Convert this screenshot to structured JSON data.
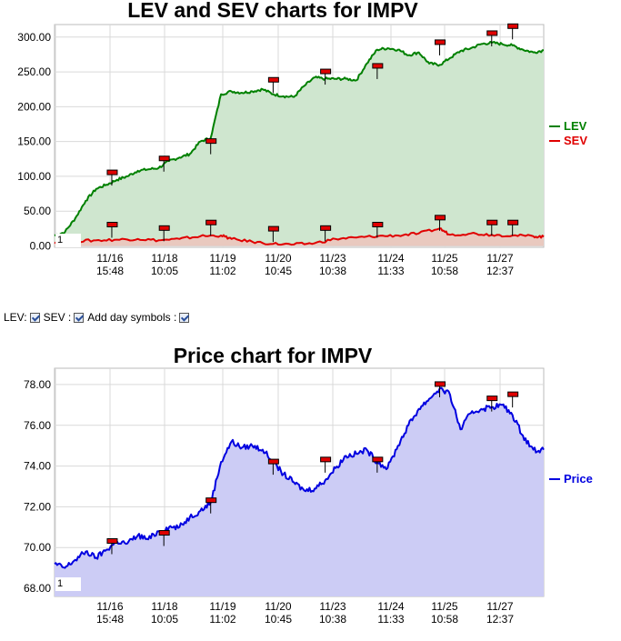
{
  "chart_data": [
    {
      "type": "area",
      "title": "LEV and SEV charts for IMPV",
      "x_ticks": [
        {
          "date": "11/16",
          "time": "15:48"
        },
        {
          "date": "11/18",
          "time": "10:05"
        },
        {
          "date": "11/19",
          "time": "11:02"
        },
        {
          "date": "11/20",
          "time": "10:45"
        },
        {
          "date": "11/23",
          "time": "10:38"
        },
        {
          "date": "11/24",
          "time": "11:33"
        },
        {
          "date": "11/25",
          "time": "10:58"
        },
        {
          "date": "11/27",
          "time": "12:37"
        }
      ],
      "y_ticks": [
        "0.00",
        "50.00",
        "100.00",
        "150.00",
        "200.00",
        "250.00",
        "300.00"
      ],
      "ylim": [
        -2,
        318
      ],
      "legend_position": "right",
      "grid": true,
      "series": [
        {
          "name": "LEV",
          "color": "#008000",
          "fill": "#cfe6cf",
          "points": [
            [
              0,
              15
            ],
            [
              2,
              20
            ],
            [
              4,
              40
            ],
            [
              6,
              65
            ],
            [
              8,
              82
            ],
            [
              10,
              88
            ],
            [
              12,
              95
            ],
            [
              14,
              100
            ],
            [
              16,
              108
            ],
            [
              18,
              110
            ],
            [
              20,
              112
            ],
            [
              22,
              122
            ],
            [
              24,
              127
            ],
            [
              26,
              132
            ],
            [
              28,
              150
            ],
            [
              30,
              155
            ],
            [
              32,
              218
            ],
            [
              34,
              222
            ],
            [
              36,
              220
            ],
            [
              38,
              222
            ],
            [
              40,
              225
            ],
            [
              42,
              218
            ],
            [
              44,
              215
            ],
            [
              46,
              214
            ],
            [
              48,
              230
            ],
            [
              50,
              242
            ],
            [
              52,
              240
            ],
            [
              54,
              240
            ],
            [
              56,
              240
            ],
            [
              58,
              238
            ],
            [
              60,
              262
            ],
            [
              62,
              282
            ],
            [
              64,
              284
            ],
            [
              66,
              282
            ],
            [
              68,
              274
            ],
            [
              70,
              278
            ],
            [
              72,
              262
            ],
            [
              74,
              260
            ],
            [
              76,
              270
            ],
            [
              78,
              280
            ],
            [
              80,
              284
            ],
            [
              82,
              290
            ],
            [
              84,
              292
            ],
            [
              86,
              290
            ],
            [
              88,
              288
            ],
            [
              90,
              282
            ],
            [
              92,
              278
            ],
            [
              94,
              281
            ]
          ]
        },
        {
          "name": "SEV",
          "color": "#e00000",
          "fill": "#e9c9bf",
          "points": [
            [
              0,
              5
            ],
            [
              4,
              7
            ],
            [
              8,
              8
            ],
            [
              12,
              9
            ],
            [
              16,
              10
            ],
            [
              20,
              8
            ],
            [
              24,
              10
            ],
            [
              28,
              14
            ],
            [
              32,
              15
            ],
            [
              34,
              10
            ],
            [
              38,
              6
            ],
            [
              42,
              3
            ],
            [
              46,
              2
            ],
            [
              50,
              4
            ],
            [
              54,
              10
            ],
            [
              58,
              12
            ],
            [
              62,
              14
            ],
            [
              66,
              15
            ],
            [
              70,
              18
            ],
            [
              74,
              25
            ],
            [
              76,
              16
            ],
            [
              80,
              18
            ],
            [
              84,
              16
            ],
            [
              88,
              15
            ],
            [
              92,
              14
            ],
            [
              94,
              13
            ]
          ]
        }
      ],
      "markers": {
        "LEV": [
          [
            11,
            105
          ],
          [
            21,
            125
          ],
          [
            30,
            150
          ],
          [
            42,
            238
          ],
          [
            52,
            250
          ],
          [
            62,
            258
          ],
          [
            74,
            292
          ],
          [
            84,
            305
          ],
          [
            88,
            315
          ]
        ],
        "SEV": [
          [
            11,
            30
          ],
          [
            21,
            25
          ],
          [
            30,
            33
          ],
          [
            42,
            24
          ],
          [
            52,
            25
          ],
          [
            62,
            30
          ],
          [
            74,
            40
          ],
          [
            84,
            33
          ],
          [
            88,
            33
          ]
        ]
      },
      "zoom_value": "1"
    },
    {
      "type": "area",
      "title": "Price chart for IMPV",
      "x_ticks": [
        {
          "date": "11/16",
          "time": "15:48"
        },
        {
          "date": "11/18",
          "time": "10:05"
        },
        {
          "date": "11/19",
          "time": "11:02"
        },
        {
          "date": "11/20",
          "time": "10:45"
        },
        {
          "date": "11/23",
          "time": "10:38"
        },
        {
          "date": "11/24",
          "time": "11:33"
        },
        {
          "date": "11/25",
          "time": "10:58"
        },
        {
          "date": "11/27",
          "time": "12:37"
        }
      ],
      "y_ticks": [
        "68.00",
        "70.00",
        "72.00",
        "74.00",
        "76.00",
        "78.00"
      ],
      "ylim": [
        67.6,
        78.8
      ],
      "legend_position": "right",
      "grid": true,
      "series": [
        {
          "name": "Price",
          "color": "#0000e0",
          "fill": "#ccccf5",
          "points": [
            [
              0,
              69.2
            ],
            [
              2,
              69.0
            ],
            [
              4,
              69.4
            ],
            [
              6,
              69.8
            ],
            [
              8,
              69.5
            ],
            [
              10,
              69.9
            ],
            [
              12,
              70.3
            ],
            [
              14,
              70.2
            ],
            [
              16,
              70.6
            ],
            [
              18,
              70.4
            ],
            [
              20,
              70.8
            ],
            [
              22,
              71.0
            ],
            [
              24,
              71.0
            ],
            [
              26,
              71.5
            ],
            [
              28,
              71.8
            ],
            [
              30,
              72.2
            ],
            [
              32,
              74.2
            ],
            [
              34,
              75.2
            ],
            [
              36,
              74.9
            ],
            [
              38,
              75.0
            ],
            [
              40,
              74.8
            ],
            [
              42,
              74.2
            ],
            [
              44,
              73.6
            ],
            [
              46,
              73.2
            ],
            [
              48,
              72.8
            ],
            [
              50,
              72.9
            ],
            [
              52,
              73.3
            ],
            [
              54,
              73.9
            ],
            [
              56,
              74.5
            ],
            [
              58,
              74.6
            ],
            [
              60,
              74.8
            ],
            [
              62,
              74.2
            ],
            [
              64,
              73.9
            ],
            [
              66,
              75.0
            ],
            [
              68,
              76.0
            ],
            [
              70,
              76.8
            ],
            [
              72,
              77.3
            ],
            [
              74,
              77.8
            ],
            [
              76,
              77.5
            ],
            [
              78,
              75.8
            ],
            [
              80,
              76.6
            ],
            [
              82,
              76.8
            ],
            [
              84,
              76.9
            ],
            [
              86,
              77.0
            ],
            [
              88,
              76.5
            ],
            [
              90,
              75.5
            ],
            [
              92,
              74.8
            ],
            [
              94,
              74.8
            ]
          ]
        }
      ],
      "markers": {
        "Price": [
          [
            11,
            70.3
          ],
          [
            21,
            70.7
          ],
          [
            30,
            72.3
          ],
          [
            42,
            74.2
          ],
          [
            52,
            74.3
          ],
          [
            62,
            74.3
          ],
          [
            74,
            78.0
          ],
          [
            84,
            77.3
          ],
          [
            88,
            77.5
          ]
        ]
      },
      "zoom_value": "1"
    }
  ],
  "controls": {
    "lev_label": "LEV:",
    "sev_label": "SEV :",
    "day_symbols_label": "Add day symbols :"
  }
}
